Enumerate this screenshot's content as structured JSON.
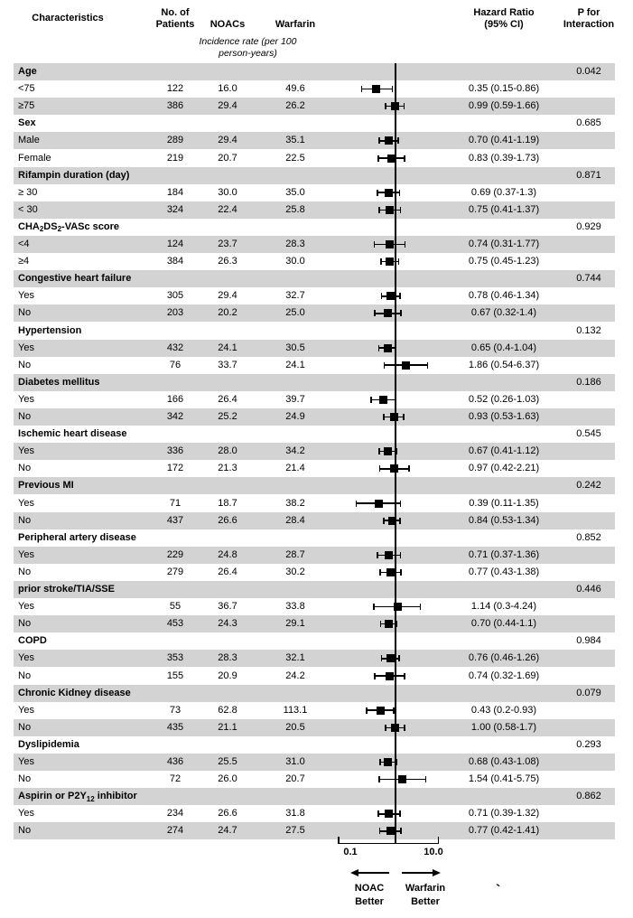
{
  "header": {
    "characteristics": "Characteristics",
    "patients_line1": "No. of",
    "patients_line2": "Patients",
    "noacs": "NOACs",
    "warfarin": "Warfarin",
    "incidence_note_line1": "Incidence rate (per 100",
    "incidence_note_line2": "person-years)",
    "hazard_line1": "Hazard Ratio",
    "hazard_line2": "(95% CI)",
    "p_line1": "P for",
    "p_line2": "Interaction"
  },
  "axis": {
    "min_label": "0.1",
    "max_label": "10.0",
    "left_label_line1": "NOAC",
    "left_label_line2": "Better",
    "right_label_line1": "Warfarin",
    "right_label_line2": "Better",
    "artifact_mark": "`"
  },
  "colors": {
    "stripe": "#d3d3d3",
    "ink": "#000000",
    "background": "#ffffff"
  },
  "chart_data": {
    "type": "forest",
    "x_scale": "log10",
    "x_axis": {
      "min": 0.1,
      "max": 10.0,
      "ref_line": 1.0,
      "tick_labels": [
        "0.1",
        "10.0"
      ]
    },
    "direction_labels": {
      "left": "NOAC Better",
      "right": "Warfarin Better"
    },
    "columns": [
      "Characteristics",
      "No. of Patients",
      "NOACs",
      "Warfarin",
      "Hazard Ratio (95% CI)",
      "P for Interaction"
    ],
    "rows": [
      {
        "type": "group",
        "label": "Age",
        "p": "0.042"
      },
      {
        "type": "item",
        "label": "<75",
        "n": "122",
        "noacs": "16.0",
        "warfarin": "49.6",
        "hr": 0.35,
        "lo": 0.15,
        "hi": 0.86,
        "hr_text": "0.35 (0.15-0.86)"
      },
      {
        "type": "item",
        "label": "≥75",
        "n": "386",
        "noacs": "29.4",
        "warfarin": "26.2",
        "hr": 0.99,
        "lo": 0.59,
        "hi": 1.66,
        "hr_text": "0.99 (0.59-1.66)"
      },
      {
        "type": "group",
        "label": "Sex",
        "p": "0.685"
      },
      {
        "type": "item",
        "label": "Male",
        "n": "289",
        "noacs": "29.4",
        "warfarin": "35.1",
        "hr": 0.7,
        "lo": 0.41,
        "hi": 1.19,
        "hr_text": "0.70 (0.41-1.19)"
      },
      {
        "type": "item",
        "label": "Female",
        "n": "219",
        "noacs": "20.7",
        "warfarin": "22.5",
        "hr": 0.83,
        "lo": 0.39,
        "hi": 1.73,
        "hr_text": "0.83 (0.39-1.73)"
      },
      {
        "type": "group",
        "label": "Rifampin duration (day)",
        "p": "0.871"
      },
      {
        "type": "item",
        "label": "≥ 30",
        "n": "184",
        "noacs": "30.0",
        "warfarin": "35.0",
        "hr": 0.69,
        "lo": 0.37,
        "hi": 1.3,
        "hr_text": "0.69 (0.37-1.3)"
      },
      {
        "type": "item",
        "label": "< 30",
        "n": "324",
        "noacs": "22.4",
        "warfarin": "25.8",
        "hr": 0.75,
        "lo": 0.41,
        "hi": 1.37,
        "hr_text": "0.75 (0.41-1.37)"
      },
      {
        "type": "group",
        "label": "CHA2DS2-VASc score",
        "p": "0.929",
        "label_rich": [
          {
            "t": "CHA"
          },
          {
            "t": "2",
            "sub": true
          },
          {
            "t": "DS"
          },
          {
            "t": "2",
            "sub": true
          },
          {
            "t": "-VASc score"
          }
        ]
      },
      {
        "type": "item",
        "label": "<4",
        "n": "124",
        "noacs": "23.7",
        "warfarin": "28.3",
        "hr": 0.74,
        "lo": 0.31,
        "hi": 1.77,
        "hr_text": "0.74 (0.31-1.77)"
      },
      {
        "type": "item",
        "label": "≥4",
        "n": "384",
        "noacs": "26.3",
        "warfarin": "30.0",
        "hr": 0.75,
        "lo": 0.45,
        "hi": 1.23,
        "hr_text": "0.75 (0.45-1.23)"
      },
      {
        "type": "group",
        "label": "Congestive heart failure",
        "p": "0.744"
      },
      {
        "type": "item",
        "label": "Yes",
        "n": "305",
        "noacs": "29.4",
        "warfarin": "32.7",
        "hr": 0.78,
        "lo": 0.46,
        "hi": 1.34,
        "hr_text": "0.78 (0.46-1.34)"
      },
      {
        "type": "item",
        "label": "No",
        "n": "203",
        "noacs": "20.2",
        "warfarin": "25.0",
        "hr": 0.67,
        "lo": 0.32,
        "hi": 1.4,
        "hr_text": "0.67 (0.32-1.4)"
      },
      {
        "type": "group",
        "label": "Hypertension",
        "p": "0.132"
      },
      {
        "type": "item",
        "label": "Yes",
        "n": "432",
        "noacs": "24.1",
        "warfarin": "30.5",
        "hr": 0.65,
        "lo": 0.4,
        "hi": 1.04,
        "hr_text": "0.65 (0.4-1.04)"
      },
      {
        "type": "item",
        "label": "No",
        "n": "76",
        "noacs": "33.7",
        "warfarin": "24.1",
        "hr": 1.86,
        "lo": 0.54,
        "hi": 6.37,
        "hr_text": "1.86 (0.54-6.37)"
      },
      {
        "type": "group",
        "label": "Diabetes mellitus",
        "p": "0.186"
      },
      {
        "type": "item",
        "label": "Yes",
        "n": "166",
        "noacs": "26.4",
        "warfarin": "39.7",
        "hr": 0.52,
        "lo": 0.26,
        "hi": 1.03,
        "hr_text": "0.52 (0.26-1.03)"
      },
      {
        "type": "item",
        "label": "No",
        "n": "342",
        "noacs": "25.2",
        "warfarin": "24.9",
        "hr": 0.93,
        "lo": 0.53,
        "hi": 1.63,
        "hr_text": "0.93 (0.53-1.63)"
      },
      {
        "type": "group",
        "label": "Ischemic heart disease",
        "p": "0.545"
      },
      {
        "type": "item",
        "label": "Yes",
        "n": "336",
        "noacs": "28.0",
        "warfarin": "34.2",
        "hr": 0.67,
        "lo": 0.41,
        "hi": 1.12,
        "hr_text": "0.67 (0.41-1.12)"
      },
      {
        "type": "item",
        "label": "No",
        "n": "172",
        "noacs": "21.3",
        "warfarin": "21.4",
        "hr": 0.97,
        "lo": 0.42,
        "hi": 2.21,
        "hr_text": "0.97 (0.42-2.21)"
      },
      {
        "type": "group",
        "label": "Previous MI",
        "p": "0.242"
      },
      {
        "type": "item",
        "label": "Yes",
        "n": "71",
        "noacs": "18.7",
        "warfarin": "38.2",
        "hr": 0.39,
        "lo": 0.11,
        "hi": 1.35,
        "hr_text": "0.39 (0.11-1.35)"
      },
      {
        "type": "item",
        "label": "No",
        "n": "437",
        "noacs": "26.6",
        "warfarin": "28.4",
        "hr": 0.84,
        "lo": 0.53,
        "hi": 1.34,
        "hr_text": "0.84 (0.53-1.34)"
      },
      {
        "type": "group",
        "label": "Peripheral artery disease",
        "p": "0.852"
      },
      {
        "type": "item",
        "label": "Yes",
        "n": "229",
        "noacs": "24.8",
        "warfarin": "28.7",
        "hr": 0.71,
        "lo": 0.37,
        "hi": 1.36,
        "hr_text": "0.71 (0.37-1.36)"
      },
      {
        "type": "item",
        "label": "No",
        "n": "279",
        "noacs": "26.4",
        "warfarin": "30.2",
        "hr": 0.77,
        "lo": 0.43,
        "hi": 1.38,
        "hr_text": "0.77 (0.43-1.38)"
      },
      {
        "type": "group",
        "label": "prior stroke/TIA/SSE",
        "p": "0.446"
      },
      {
        "type": "item",
        "label": "Yes",
        "n": "55",
        "noacs": "36.7",
        "warfarin": "33.8",
        "hr": 1.14,
        "lo": 0.3,
        "hi": 4.24,
        "hr_text": "1.14 (0.3-4.24)"
      },
      {
        "type": "item",
        "label": "No",
        "n": "453",
        "noacs": "24.3",
        "warfarin": "29.1",
        "hr": 0.7,
        "lo": 0.44,
        "hi": 1.1,
        "hr_text": "0.70 (0.44-1.1)"
      },
      {
        "type": "group",
        "label": "COPD",
        "p": "0.984"
      },
      {
        "type": "item",
        "label": "Yes",
        "n": "353",
        "noacs": "28.3",
        "warfarin": "32.1",
        "hr": 0.76,
        "lo": 0.46,
        "hi": 1.26,
        "hr_text": "0.76 (0.46-1.26)"
      },
      {
        "type": "item",
        "label": "No",
        "n": "155",
        "noacs": "20.9",
        "warfarin": "24.2",
        "hr": 0.74,
        "lo": 0.32,
        "hi": 1.69,
        "hr_text": "0.74 (0.32-1.69)"
      },
      {
        "type": "group",
        "label": "Chronic Kidney disease",
        "p": "0.079"
      },
      {
        "type": "item",
        "label": "Yes",
        "n": "73",
        "noacs": "62.8",
        "warfarin": "113.1",
        "hr": 0.43,
        "lo": 0.2,
        "hi": 0.93,
        "hr_text": "0.43 (0.2-0.93)"
      },
      {
        "type": "item",
        "label": "No",
        "n": "435",
        "noacs": "21.1",
        "warfarin": "20.5",
        "hr": 1.0,
        "lo": 0.58,
        "hi": 1.7,
        "hr_text": "1.00 (0.58-1.7)"
      },
      {
        "type": "group",
        "label": "Dyslipidemia",
        "p": "0.293"
      },
      {
        "type": "item",
        "label": "Yes",
        "n": "436",
        "noacs": "25.5",
        "warfarin": "31.0",
        "hr": 0.68,
        "lo": 0.43,
        "hi": 1.08,
        "hr_text": "0.68 (0.43-1.08)"
      },
      {
        "type": "item",
        "label": "No",
        "n": "72",
        "noacs": "26.0",
        "warfarin": "20.7",
        "hr": 1.54,
        "lo": 0.41,
        "hi": 5.75,
        "hr_text": "1.54 (0.41-5.75)"
      },
      {
        "type": "group",
        "label": "Aspirin or P2Y12 inhibitor",
        "p": "0.862",
        "label_rich": [
          {
            "t": "Aspirin or P2Y"
          },
          {
            "t": "12",
            "sub": true
          },
          {
            "t": " inhibitor"
          }
        ]
      },
      {
        "type": "item",
        "label": "Yes",
        "n": "234",
        "noacs": "26.6",
        "warfarin": "31.8",
        "hr": 0.71,
        "lo": 0.39,
        "hi": 1.32,
        "hr_text": "0.71 (0.39-1.32)"
      },
      {
        "type": "item",
        "label": "No",
        "n": "274",
        "noacs": "24.7",
        "warfarin": "27.5",
        "hr": 0.77,
        "lo": 0.42,
        "hi": 1.41,
        "hr_text": "0.77 (0.42-1.41)"
      }
    ]
  }
}
